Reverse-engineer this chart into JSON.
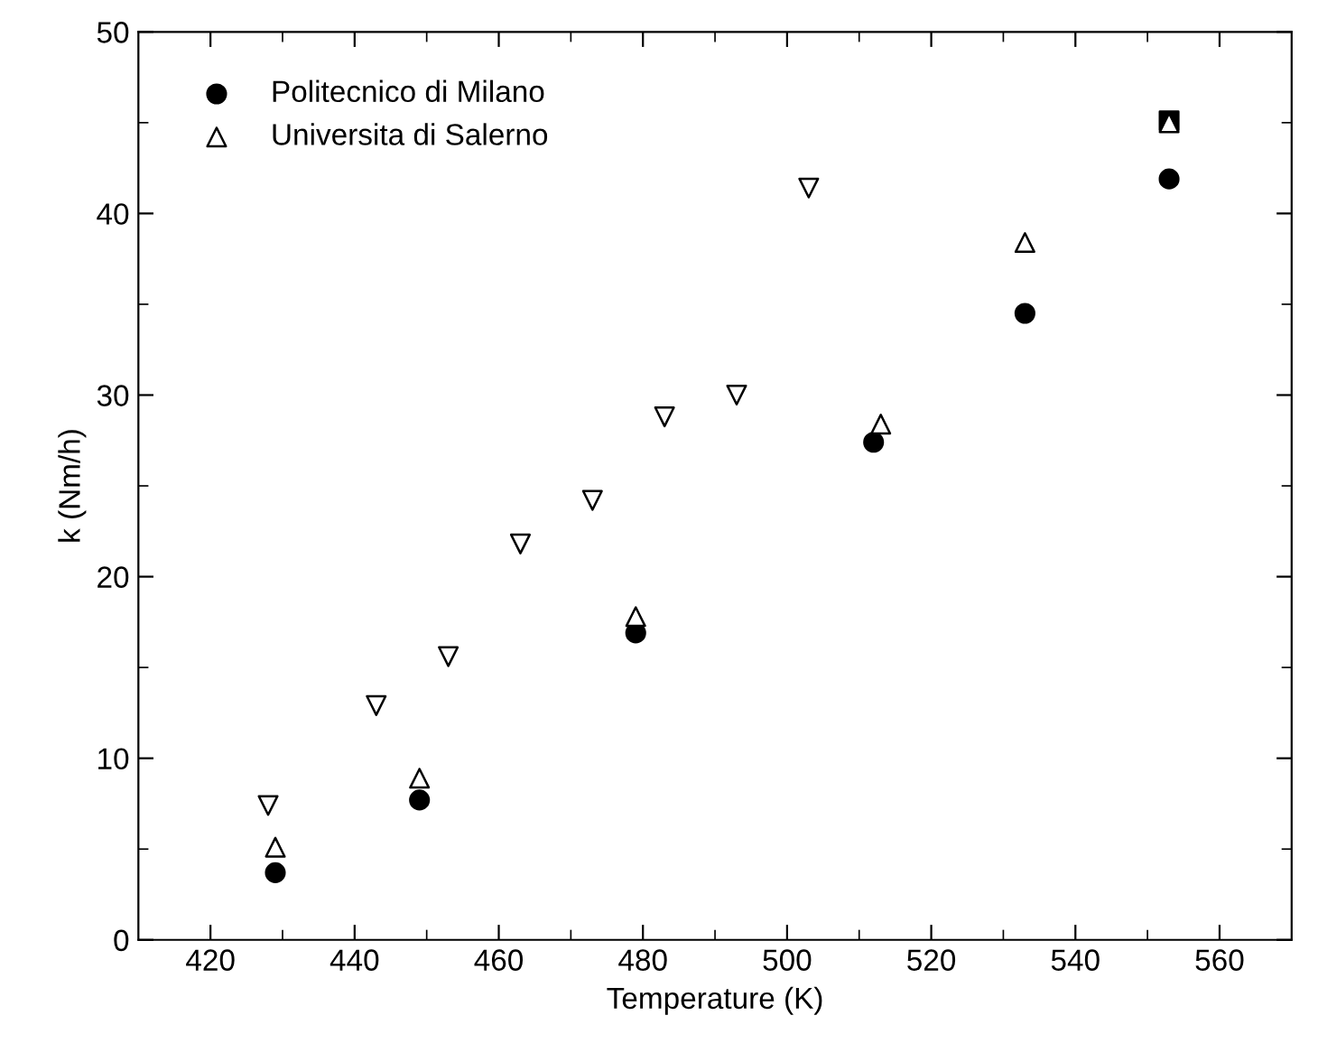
{
  "chart_data": {
    "type": "scatter",
    "xlabel": "Temperature (K)",
    "ylabel": "k (Nm/h)",
    "xlim": [
      410,
      570
    ],
    "xticks": [
      420,
      {
        "value": 430,
        "label": null
      },
      440,
      {
        "value": 450,
        "label": null
      },
      460,
      {
        "value": 470,
        "label": null
      },
      480,
      {
        "value": 490,
        "label": null
      },
      500,
      {
        "value": 510,
        "label": null
      },
      520,
      {
        "value": 530,
        "label": null
      },
      540,
      {
        "value": 550,
        "label": null
      },
      560
    ],
    "ylim": [
      0,
      50
    ],
    "yticks": [
      0,
      {
        "value": 5,
        "label": null
      },
      10,
      {
        "value": 15,
        "label": null
      },
      20,
      {
        "value": 25,
        "label": null
      },
      30,
      {
        "value": 35,
        "label": null
      },
      40,
      {
        "value": 45,
        "label": null
      },
      50
    ],
    "grid": false,
    "legend": "top left",
    "series": [
      {
        "color": "#000000",
        "marker": "square",
        "x": [
          553
        ],
        "values": [
          45.1
        ]
      },
      {
        "name": "Politecnico di Milano",
        "color": "#000000",
        "marker": "circle",
        "x": [
          429,
          449,
          479,
          512,
          533,
          553
        ],
        "values": [
          3.7,
          7.7,
          16.9,
          27.4,
          34.5,
          41.9
        ]
      },
      {
        "name": "Universita di Salerno",
        "color": "#000000",
        "marker": "triangle",
        "x": [
          429,
          449,
          479,
          513,
          533,
          553
        ],
        "values": [
          5.1,
          8.9,
          17.8,
          28.4,
          38.4,
          45.0
        ]
      },
      {
        "color": "#000000",
        "marker": "triangle-down",
        "x": [
          428,
          443,
          453,
          463,
          473,
          483,
          493,
          503
        ],
        "values": [
          7.4,
          12.9,
          15.6,
          21.8,
          24.2,
          28.8,
          30.0,
          41.4
        ]
      }
    ]
  }
}
